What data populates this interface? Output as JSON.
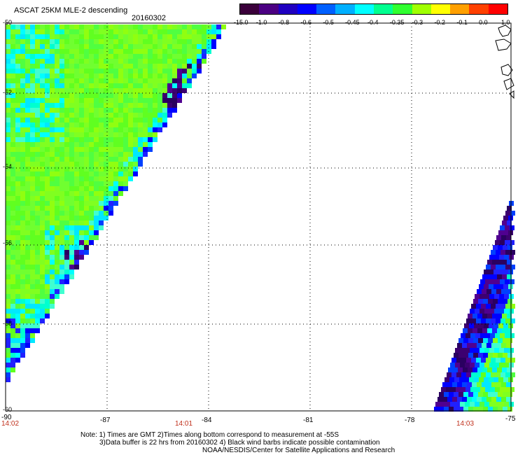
{
  "header": {
    "title": "ASCAT 25KM MLE-2 descending",
    "date": "20160302"
  },
  "colorbar": {
    "labels": [
      "-15.0",
      "-1.0",
      "-0.8",
      "-0.6",
      "-0.5",
      "-0.45",
      "-0.4",
      "-0.35",
      "-0.3",
      "-0.2",
      "-0.1",
      "0.0",
      "1.0"
    ],
    "colors": [
      "#3a003a",
      "#4b0082",
      "#2000c0",
      "#0000ff",
      "#0060ff",
      "#00b0ff",
      "#00ffff",
      "#00ff90",
      "#30ff30",
      "#a0ff00",
      "#ffff00",
      "#ffa000",
      "#ff4000",
      "#ff0000"
    ]
  },
  "axes": {
    "lat_labels": [
      "-50",
      "-52",
      "-54",
      "-56",
      "-58",
      "-60"
    ],
    "lon_labels": [
      "-90",
      "-87",
      "-84",
      "-81",
      "-78",
      "-75"
    ]
  },
  "times": {
    "t1": "14:02",
    "t2": "14:01",
    "t3": "14:03"
  },
  "notes": {
    "line1": "Note: 1) Times are GMT 2)Times along bottom correspond to measurement at -55S",
    "line2": "3)Data buffer is 22 hrs from 20160302 4) Black wind barbs indicate possible contamination",
    "line3": "NOAA/NESDIS/Center for Satellite Applications and Research"
  }
}
